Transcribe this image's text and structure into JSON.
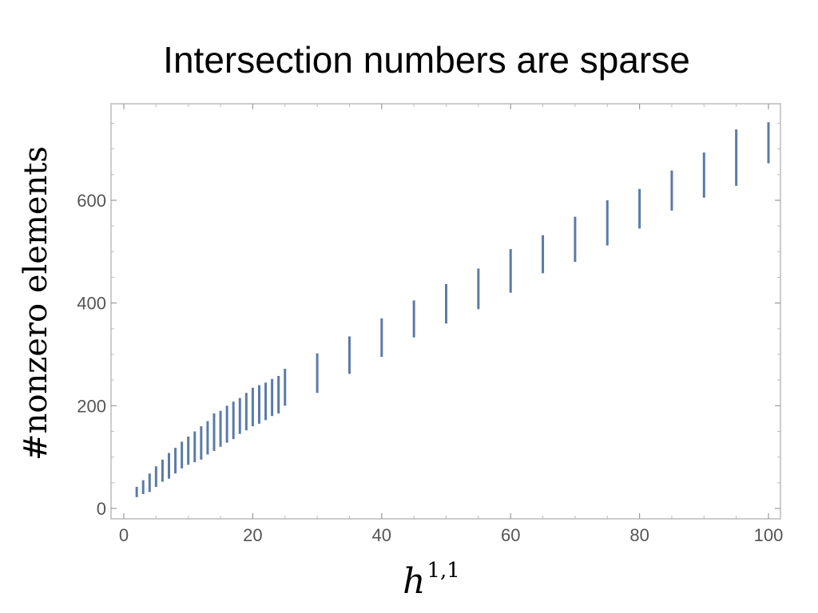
{
  "title": "Intersection numbers are sparse",
  "chart_data": {
    "type": "scatter",
    "xlabel": "h",
    "xlabel_superscript": "1,1",
    "ylabel": "#nonzero elements",
    "xlim": [
      0,
      100
    ],
    "ylim": [
      0,
      760
    ],
    "xticks": [
      0,
      20,
      40,
      60,
      80,
      100
    ],
    "yticks": [
      0,
      200,
      400,
      600
    ],
    "grid": false,
    "mark_color": "#5b7aa8",
    "ranges": [
      {
        "x": 2,
        "ymin": 22,
        "ymax": 42
      },
      {
        "x": 3,
        "ymin": 28,
        "ymax": 55
      },
      {
        "x": 4,
        "ymin": 32,
        "ymax": 68
      },
      {
        "x": 5,
        "ymin": 42,
        "ymax": 82
      },
      {
        "x": 6,
        "ymin": 52,
        "ymax": 95
      },
      {
        "x": 7,
        "ymin": 58,
        "ymax": 108
      },
      {
        "x": 8,
        "ymin": 68,
        "ymax": 118
      },
      {
        "x": 9,
        "ymin": 78,
        "ymax": 130
      },
      {
        "x": 10,
        "ymin": 85,
        "ymax": 140
      },
      {
        "x": 11,
        "ymin": 90,
        "ymax": 150
      },
      {
        "x": 12,
        "ymin": 95,
        "ymax": 160
      },
      {
        "x": 13,
        "ymin": 105,
        "ymax": 170
      },
      {
        "x": 14,
        "ymin": 112,
        "ymax": 185
      },
      {
        "x": 15,
        "ymin": 120,
        "ymax": 190
      },
      {
        "x": 16,
        "ymin": 128,
        "ymax": 200
      },
      {
        "x": 17,
        "ymin": 135,
        "ymax": 208
      },
      {
        "x": 18,
        "ymin": 145,
        "ymax": 215
      },
      {
        "x": 19,
        "ymin": 152,
        "ymax": 225
      },
      {
        "x": 20,
        "ymin": 160,
        "ymax": 235
      },
      {
        "x": 21,
        "ymin": 165,
        "ymax": 240
      },
      {
        "x": 22,
        "ymin": 172,
        "ymax": 245
      },
      {
        "x": 23,
        "ymin": 180,
        "ymax": 252
      },
      {
        "x": 24,
        "ymin": 185,
        "ymax": 258
      },
      {
        "x": 25,
        "ymin": 200,
        "ymax": 272
      },
      {
        "x": 30,
        "ymin": 225,
        "ymax": 302
      },
      {
        "x": 35,
        "ymin": 262,
        "ymax": 335
      },
      {
        "x": 40,
        "ymin": 295,
        "ymax": 370
      },
      {
        "x": 45,
        "ymin": 333,
        "ymax": 405
      },
      {
        "x": 50,
        "ymin": 360,
        "ymax": 437
      },
      {
        "x": 55,
        "ymin": 388,
        "ymax": 467
      },
      {
        "x": 60,
        "ymin": 420,
        "ymax": 505
      },
      {
        "x": 65,
        "ymin": 458,
        "ymax": 532
      },
      {
        "x": 70,
        "ymin": 480,
        "ymax": 568
      },
      {
        "x": 75,
        "ymin": 512,
        "ymax": 600
      },
      {
        "x": 80,
        "ymin": 545,
        "ymax": 622
      },
      {
        "x": 85,
        "ymin": 580,
        "ymax": 658
      },
      {
        "x": 90,
        "ymin": 605,
        "ymax": 693
      },
      {
        "x": 95,
        "ymin": 628,
        "ymax": 738
      },
      {
        "x": 100,
        "ymin": 672,
        "ymax": 752
      }
    ]
  }
}
